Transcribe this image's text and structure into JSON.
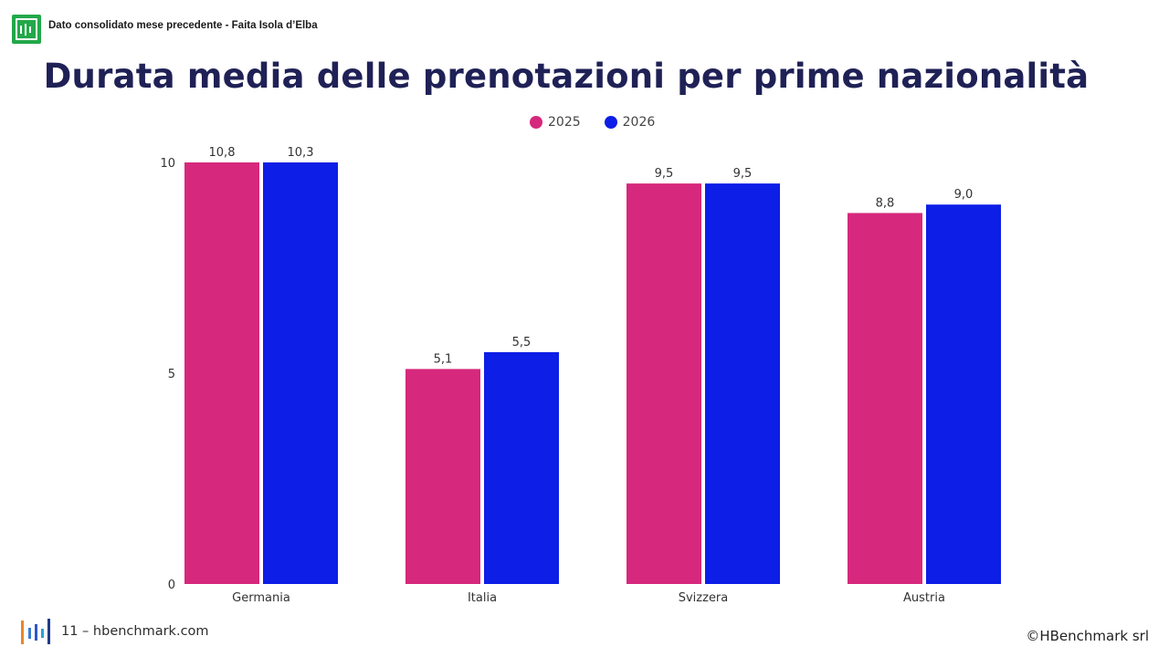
{
  "header": {
    "caption": "Dato consolidato mese precedente - Faita Isola d’Elba",
    "title": "Durata media delle prenotazioni per prime nazionalità"
  },
  "footer": {
    "page_text": "11 – hbenchmark.com",
    "copyright": "©HBenchmark srl"
  },
  "colors": {
    "series_2025": "#d6287c",
    "series_2026": "#0d1ee6",
    "brand_green": "#23a84a"
  },
  "chart_data": {
    "type": "bar",
    "categories": [
      "Germania",
      "Italia",
      "Svizzera",
      "Austria"
    ],
    "series": [
      {
        "name": "2025",
        "values": [
          10.8,
          5.1,
          9.5,
          8.8
        ],
        "labels": [
          "10,8",
          "5,1",
          "9,5",
          "8,8"
        ]
      },
      {
        "name": "2026",
        "values": [
          10.3,
          5.5,
          9.5,
          9.0
        ],
        "labels": [
          "10,3",
          "5,5",
          "9,5",
          "9,0"
        ]
      }
    ],
    "yticks": [
      "0",
      "5",
      "10"
    ],
    "ylim": [
      0,
      10
    ],
    "legend": "top-center",
    "grid": false
  }
}
